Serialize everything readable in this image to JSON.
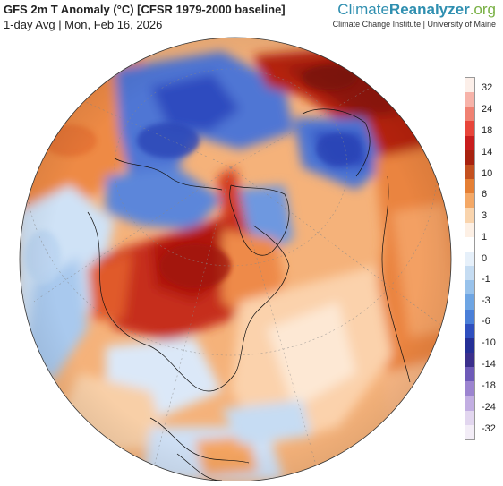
{
  "header": {
    "title": "GFS 2m T Anomaly (°C) [CFSR 1979-2000 baseline]",
    "subtitle": "1-day Avg | Mon, Feb 16, 2026"
  },
  "brand": {
    "name_part1": "Climate",
    "name_part2": "Reanalyzer",
    "name_part3": ".org",
    "tagline": "Climate Change Institute | University of Maine"
  },
  "map": {
    "projection": "orthographic",
    "center": "North Atlantic / North America, polar view"
  },
  "legend": {
    "labels": [
      "32",
      "24",
      "18",
      "14",
      "10",
      "6",
      "3",
      "1",
      "0",
      "-1",
      "-3",
      "-6",
      "-10",
      "-14",
      "-18",
      "-24",
      "-32"
    ],
    "colors": [
      "#fcefe9",
      "#f7b3a9",
      "#f08172",
      "#e8453a",
      "#c81d1d",
      "#a8220f",
      "#c4501f",
      "#e57f34",
      "#f4a866",
      "#f9d4ad",
      "#fdf0e5",
      "#ffffff",
      "#e6f0fa",
      "#c5dcf2",
      "#98c2eb",
      "#6ea5e3",
      "#4a7fd8",
      "#2f4fbf",
      "#252f96",
      "#3b2f8c",
      "#6e5ab8",
      "#9c84d0",
      "#c2aee2",
      "#e2d6ef",
      "#f3edf7"
    ]
  }
}
